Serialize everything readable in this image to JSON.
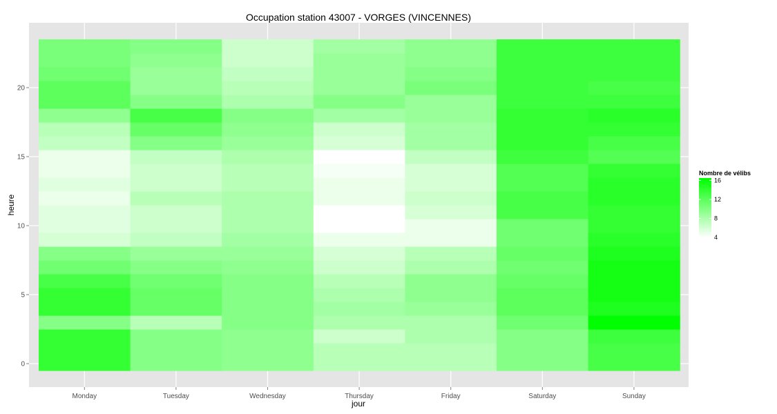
{
  "chart_data": {
    "type": "heatmap",
    "title": "Occupation station 43007 - VORGES (VINCENNES)",
    "xlabel": "jour",
    "ylabel": "heure",
    "days": [
      "Monday",
      "Tuesday",
      "Wednesday",
      "Thursday",
      "Friday",
      "Saturday",
      "Sunday"
    ],
    "hours": [
      0,
      1,
      2,
      3,
      4,
      5,
      6,
      7,
      8,
      9,
      10,
      11,
      12,
      13,
      14,
      15,
      16,
      17,
      18,
      19,
      20,
      21,
      22,
      23
    ],
    "ylim": [
      -0.5,
      23.5
    ],
    "yticks": [
      0,
      5,
      10,
      15,
      20
    ],
    "grid": true,
    "legend": {
      "title": "Nombre de vélibs",
      "placement": "right",
      "min": 4,
      "max": 16.5,
      "ticks": [
        4,
        8,
        12,
        16
      ],
      "low_color": "#ffffff",
      "high_color": "#00ff00"
    },
    "values": {
      "Monday": [
        14,
        14,
        14,
        10,
        14,
        14,
        13,
        11,
        10,
        6,
        5.5,
        5.5,
        5,
        5.5,
        5,
        5,
        7,
        7.5,
        9.5,
        12,
        12,
        11,
        10.5,
        10.5
      ],
      "Tuesday": [
        10,
        10,
        10,
        7.5,
        11.5,
        11.5,
        11,
        10,
        9,
        7,
        6.5,
        6.5,
        7.5,
        6.5,
        6.5,
        7,
        10,
        11.5,
        13,
        10,
        9,
        9,
        9.5,
        10
      ],
      "Wednesday": [
        9.5,
        9.5,
        9.5,
        10,
        10,
        10,
        10,
        9.5,
        9,
        8.5,
        8,
        8,
        8,
        7.5,
        7.5,
        8,
        9,
        9.5,
        10,
        8,
        7.5,
        7,
        6.5,
        6.5
      ],
      "Thursday": [
        7.5,
        7.5,
        6.5,
        8,
        8.5,
        8,
        7.5,
        6.5,
        6,
        5,
        4,
        4,
        5,
        5,
        4.5,
        4,
        6,
        6.5,
        8.5,
        10,
        9,
        9,
        9,
        8.5
      ],
      "Friday": [
        7.5,
        7.5,
        8,
        8,
        9,
        9.5,
        9.5,
        8,
        7.5,
        5,
        5,
        6,
        6.5,
        6,
        6,
        7,
        8.5,
        8.5,
        9,
        9,
        10.5,
        10,
        9.5,
        9.5
      ],
      "Saturday": [
        10,
        10,
        10,
        11,
        12,
        12,
        11.5,
        11,
        11.5,
        11,
        11,
        13,
        13,
        12.5,
        12.5,
        13.5,
        14,
        14,
        14,
        13.5,
        13.5,
        13.5,
        13.5,
        13.5
      ],
      "Sunday": [
        13,
        13,
        13.5,
        16.5,
        15,
        15.5,
        15.5,
        15.5,
        15,
        14.5,
        14,
        14,
        14.5,
        14.5,
        14,
        12.5,
        13,
        14,
        14.5,
        13.5,
        13,
        13.5,
        13.5,
        13.5
      ]
    }
  }
}
